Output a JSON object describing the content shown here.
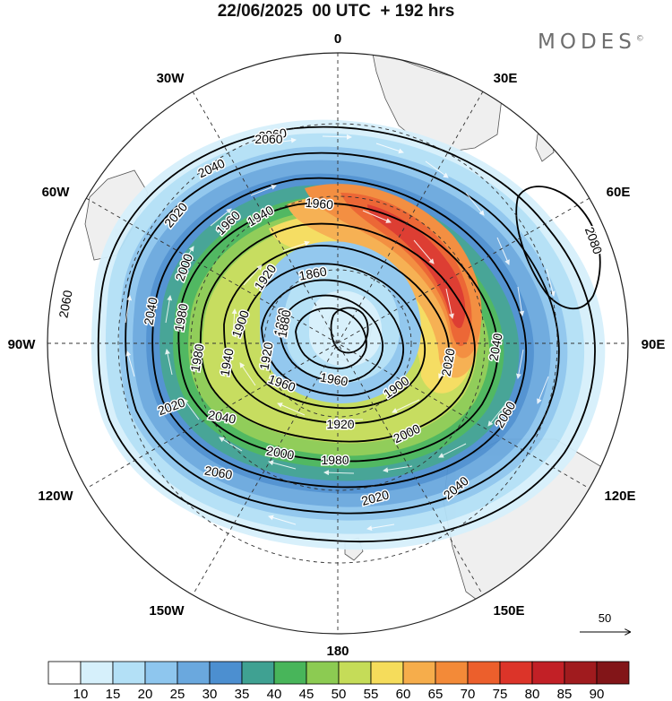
{
  "header": {
    "title": "22/06/2025  00 UTC  + 192 hrs",
    "brand": "MODES",
    "brand_mark": "©"
  },
  "map": {
    "projection": "south-polar-stereographic",
    "longitude_labels": {
      "top": "0",
      "top_right": "30E",
      "upper_right": "60E",
      "right": "90E",
      "lower_right": "120E",
      "bottom_right": "150E",
      "bottom": "180",
      "bottom_left": "150W",
      "lower_left": "120W",
      "left": "90W",
      "upper_left": "60W",
      "top_left": "30W"
    },
    "contour_labels": [
      "2060",
      "2040",
      "2020",
      "2000",
      "1980",
      "1960",
      "1940",
      "1920",
      "1900",
      "1880",
      "1860",
      "1960",
      "1900",
      "1920",
      "1980",
      "2000",
      "2020",
      "2040",
      "2060",
      "2080",
      "2060",
      "2040",
      "2020",
      "1960",
      "1940",
      "2040",
      "2060",
      "1980",
      "1960",
      "1920",
      "1880",
      "2000",
      "2020",
      "2040",
      "2060"
    ],
    "colors": {
      "land": "#eeeeee",
      "coast": "#555555",
      "contour": "#000000",
      "grid": "#333333",
      "wind_vector": "#ffffff"
    }
  },
  "legend": {
    "vector_reference": "50",
    "colorbar": {
      "labels": [
        "10",
        "15",
        "20",
        "25",
        "30",
        "35",
        "40",
        "45",
        "50",
        "55",
        "60",
        "65",
        "70",
        "75",
        "80",
        "85",
        "90"
      ],
      "colors": [
        "#ffffff",
        "#d6f0fb",
        "#b3e0f6",
        "#8ec6ee",
        "#6aa8de",
        "#4c8fd0",
        "#3fa192",
        "#48b55a",
        "#8ccb52",
        "#c5dc58",
        "#f5dc5b",
        "#f6ad4b",
        "#f38a38",
        "#ec5f2c",
        "#dc3429",
        "#c22026",
        "#a01b1e",
        "#821518"
      ]
    }
  }
}
